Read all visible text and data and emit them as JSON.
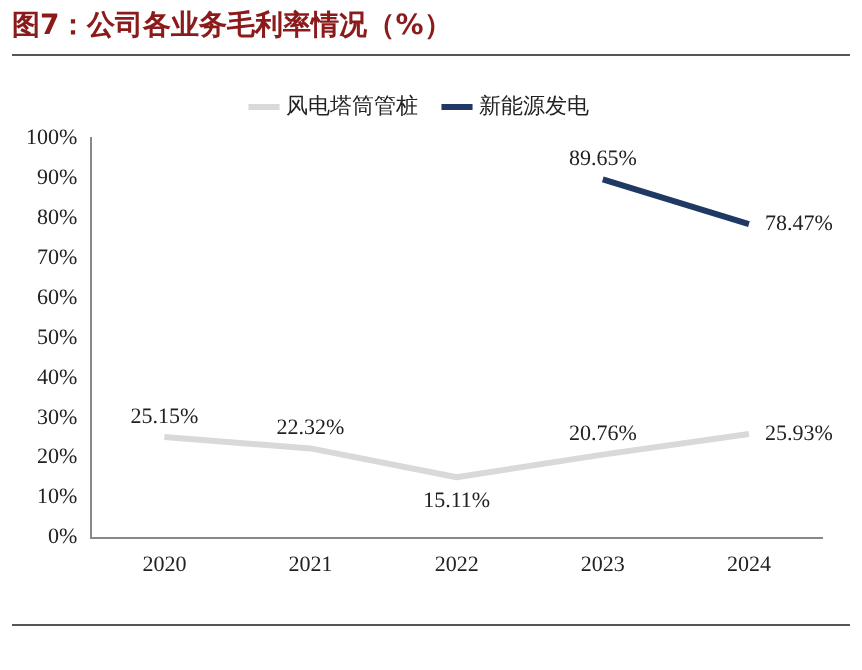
{
  "chart_data": {
    "type": "line",
    "title": "图7：公司各业务毛利率情况（%）",
    "categories": [
      "2020",
      "2021",
      "2022",
      "2023",
      "2024"
    ],
    "series": [
      {
        "name": "风电塔筒管桩",
        "color": "#d9d9d9",
        "values": [
          25.15,
          22.32,
          15.11,
          20.76,
          25.93
        ],
        "value_labels": [
          "25.15%",
          "22.32%",
          "15.11%",
          "20.76%",
          "25.93%"
        ]
      },
      {
        "name": "新能源发电",
        "color": "#1f3864",
        "values": [
          null,
          null,
          null,
          89.65,
          78.47
        ],
        "value_labels": [
          null,
          null,
          null,
          "89.65%",
          "78.47%"
        ]
      }
    ],
    "ylim": [
      0,
      100
    ],
    "yticks": [
      {
        "value": 0,
        "label": "0%"
      },
      {
        "value": 10,
        "label": "10%"
      },
      {
        "value": 20,
        "label": "20%"
      },
      {
        "value": 30,
        "label": "30%"
      },
      {
        "value": 40,
        "label": "40%"
      },
      {
        "value": 50,
        "label": "50%"
      },
      {
        "value": 60,
        "label": "60%"
      },
      {
        "value": 70,
        "label": "70%"
      },
      {
        "value": 80,
        "label": "80%"
      },
      {
        "value": 90,
        "label": "90%"
      },
      {
        "value": 100,
        "label": "100%"
      }
    ],
    "grid": false,
    "legend": "top",
    "marker": "none",
    "line_style": "solid"
  }
}
